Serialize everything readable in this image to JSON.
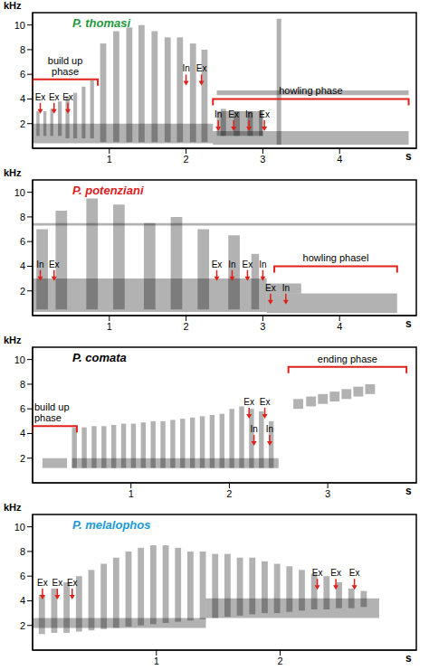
{
  "chart_data": [
    {
      "type": "spectrogram",
      "title": "P. thomasi",
      "color": "#1e9a3c",
      "x_label": "s",
      "y_label": "kHz",
      "xlim": [
        0,
        5
      ],
      "xticks": [
        1,
        2,
        3,
        4
      ],
      "ylim": [
        0,
        11
      ],
      "yticks": [
        2,
        4,
        6,
        8,
        10
      ],
      "sound_energy": [
        [
          0.05,
          0.09,
          1.0,
          3.0
        ],
        [
          0.14,
          0.18,
          1.0,
          3.0
        ],
        [
          0.23,
          0.27,
          1.0,
          3.2
        ],
        [
          0.33,
          0.38,
          1.0,
          3.8
        ],
        [
          0.43,
          0.48,
          0.8,
          4.2
        ],
        [
          0.53,
          0.58,
          0.8,
          4.5
        ],
        [
          0.64,
          0.69,
          0.8,
          5.0
        ],
        [
          0.75,
          0.8,
          0.8,
          5.5
        ],
        [
          0.88,
          0.96,
          0.5,
          8.5
        ],
        [
          1.05,
          1.13,
          0.5,
          9.5
        ],
        [
          1.22,
          1.3,
          0.5,
          9.8
        ],
        [
          1.38,
          1.46,
          0.5,
          10.0
        ],
        [
          1.55,
          1.63,
          0.5,
          9.5
        ],
        [
          1.72,
          1.8,
          0.5,
          9.0
        ],
        [
          1.88,
          1.96,
          0.5,
          9.0
        ],
        [
          2.05,
          2.13,
          0.5,
          8.5
        ],
        [
          2.2,
          2.28,
          0.5,
          8.0
        ],
        [
          0.0,
          2.35,
          0.4,
          2.0
        ],
        [
          2.35,
          4.9,
          0.3,
          1.4
        ],
        [
          2.4,
          3.0,
          1.0,
          3.0
        ],
        [
          2.45,
          2.52,
          1.0,
          3.2
        ],
        [
          2.62,
          2.7,
          1.0,
          3.0
        ],
        [
          2.8,
          2.87,
          1.0,
          3.0
        ],
        [
          2.95,
          3.0,
          1.0,
          3.0
        ],
        [
          3.18,
          3.24,
          0.3,
          10.5
        ],
        [
          2.4,
          4.9,
          4.3,
          4.7
        ]
      ],
      "annotations": [
        {
          "text": "Ex",
          "x": 0.1,
          "y": 3.9
        },
        {
          "text": "Ex",
          "x": 0.28,
          "y": 3.9
        },
        {
          "text": "Ex",
          "x": 0.46,
          "y": 3.9
        },
        {
          "text": "In",
          "x": 2.0,
          "y": 6.2
        },
        {
          "text": "Ex",
          "x": 2.2,
          "y": 6.2
        },
        {
          "text": "In",
          "x": 2.42,
          "y": 2.5
        },
        {
          "text": "Ex",
          "x": 2.62,
          "y": 2.5
        },
        {
          "text": "In",
          "x": 2.82,
          "y": 2.5
        },
        {
          "text": "Ex",
          "x": 3.02,
          "y": 2.5
        }
      ],
      "phases": [
        {
          "text": "build up phase",
          "x": [
            0,
            0.85
          ],
          "y": 5.6
        },
        {
          "text": "howling phase",
          "x": [
            2.35,
            4.9
          ],
          "y": 4.0
        }
      ]
    },
    {
      "type": "spectrogram",
      "title": "P. potenziani",
      "color": "#e0201b",
      "x_label": "s",
      "y_label": "kHz",
      "xlim": [
        0,
        5
      ],
      "xticks": [
        1,
        2,
        3,
        4
      ],
      "ylim": [
        0,
        11
      ],
      "yticks": [
        2,
        4,
        6,
        8,
        10
      ],
      "sound_energy": [
        [
          0.0,
          3.05,
          0.3,
          3.0
        ],
        [
          0.05,
          0.2,
          0.5,
          7.0
        ],
        [
          0.3,
          0.45,
          0.5,
          8.5
        ],
        [
          0.7,
          0.85,
          0.5,
          9.5
        ],
        [
          1.05,
          1.2,
          0.5,
          9.0
        ],
        [
          1.45,
          1.6,
          0.5,
          7.5
        ],
        [
          1.8,
          1.95,
          0.5,
          8.0
        ],
        [
          2.15,
          2.3,
          0.5,
          7.0
        ],
        [
          2.55,
          2.7,
          0.5,
          6.5
        ],
        [
          2.85,
          2.95,
          0.5,
          5.0
        ],
        [
          0.0,
          5.0,
          7.3,
          7.5
        ],
        [
          3.05,
          4.75,
          0.2,
          1.8
        ],
        [
          3.05,
          3.5,
          1.8,
          2.6
        ]
      ],
      "annotations": [
        {
          "text": "In",
          "x": 0.1,
          "y": 3.9
        },
        {
          "text": "Ex",
          "x": 0.28,
          "y": 3.9
        },
        {
          "text": "Ex",
          "x": 2.4,
          "y": 3.9
        },
        {
          "text": "In",
          "x": 2.6,
          "y": 3.9
        },
        {
          "text": "Ex",
          "x": 2.8,
          "y": 3.9
        },
        {
          "text": "In",
          "x": 3.0,
          "y": 3.9
        },
        {
          "text": "Ex",
          "x": 3.1,
          "y": 2.0
        },
        {
          "text": "In",
          "x": 3.3,
          "y": 2.0
        }
      ],
      "phases": [
        {
          "text": "howling phasel",
          "x": [
            3.15,
            4.75
          ],
          "y": 4.0
        }
      ]
    },
    {
      "type": "spectrogram",
      "title": "P. comata",
      "color": "#000000",
      "x_label": "s",
      "y_label": "kHz",
      "xlim": [
        0,
        3.9
      ],
      "xticks": [
        1,
        2,
        3
      ],
      "ylim": [
        0,
        11
      ],
      "yticks": [
        2,
        4,
        6,
        8,
        10
      ],
      "sound_energy": [
        [
          0.1,
          0.35,
          1.2,
          2.0
        ],
        [
          0.4,
          0.45,
          1.2,
          4.5
        ],
        [
          0.5,
          0.55,
          1.2,
          4.5
        ],
        [
          0.6,
          0.65,
          1.2,
          4.6
        ],
        [
          0.7,
          0.75,
          1.2,
          4.6
        ],
        [
          0.8,
          0.85,
          1.2,
          4.7
        ],
        [
          0.9,
          0.95,
          1.2,
          4.8
        ],
        [
          1.0,
          1.05,
          1.2,
          4.8
        ],
        [
          1.1,
          1.15,
          1.2,
          4.9
        ],
        [
          1.2,
          1.25,
          1.2,
          5.0
        ],
        [
          1.3,
          1.35,
          1.2,
          5.0
        ],
        [
          1.4,
          1.45,
          1.2,
          5.1
        ],
        [
          1.5,
          1.55,
          1.2,
          5.2
        ],
        [
          1.6,
          1.65,
          1.2,
          5.3
        ],
        [
          1.7,
          1.75,
          1.2,
          5.4
        ],
        [
          1.8,
          1.85,
          1.2,
          5.5
        ],
        [
          1.9,
          1.95,
          1.2,
          5.6
        ],
        [
          2.0,
          2.05,
          1.2,
          6.0
        ],
        [
          2.1,
          2.15,
          1.2,
          6.2
        ],
        [
          2.2,
          2.25,
          1.2,
          6.0
        ],
        [
          2.3,
          2.35,
          1.2,
          5.8
        ],
        [
          2.4,
          2.45,
          1.2,
          5.0
        ],
        [
          0.4,
          2.5,
          1.2,
          2.0
        ],
        [
          2.65,
          2.75,
          6.0,
          6.8
        ],
        [
          2.78,
          2.88,
          6.2,
          7.0
        ],
        [
          2.9,
          3.0,
          6.4,
          7.2
        ],
        [
          3.02,
          3.12,
          6.6,
          7.4
        ],
        [
          3.14,
          3.24,
          6.8,
          7.6
        ],
        [
          3.26,
          3.36,
          7.0,
          7.8
        ],
        [
          3.38,
          3.48,
          7.2,
          8.0
        ]
      ],
      "annotations": [
        {
          "text": "Ex",
          "x": 2.2,
          "y": 6.3
        },
        {
          "text": "Ex",
          "x": 2.36,
          "y": 6.3
        },
        {
          "text": "In",
          "x": 2.25,
          "y": 4.1
        },
        {
          "text": "In",
          "x": 2.41,
          "y": 4.1
        }
      ],
      "phases": [
        {
          "text": "build up phase",
          "x": [
            0,
            0.45
          ],
          "y": 4.6
        },
        {
          "text": "ending phase",
          "x": [
            2.6,
            3.8
          ],
          "y": 9.4
        }
      ]
    },
    {
      "type": "spectrogram",
      "title": "P. melalophos",
      "color": "#1b9ad6",
      "x_label": "s",
      "y_label": "kHz",
      "xlim": [
        0,
        3.1
      ],
      "xticks": [
        1,
        2
      ],
      "ylim": [
        0,
        11
      ],
      "yticks": [
        2,
        4,
        6,
        8,
        10
      ],
      "sound_energy": [
        [
          0.05,
          0.1,
          1.3,
          4.5
        ],
        [
          0.15,
          0.2,
          1.4,
          5.0
        ],
        [
          0.25,
          0.3,
          1.4,
          5.5
        ],
        [
          0.35,
          0.4,
          1.5,
          6.0
        ],
        [
          0.45,
          0.5,
          1.6,
          6.5
        ],
        [
          0.55,
          0.6,
          1.7,
          7.0
        ],
        [
          0.65,
          0.7,
          1.8,
          7.5
        ],
        [
          0.75,
          0.8,
          1.9,
          8.0
        ],
        [
          0.85,
          0.9,
          2.0,
          8.3
        ],
        [
          0.95,
          1.0,
          2.1,
          8.5
        ],
        [
          1.05,
          1.1,
          2.2,
          8.5
        ],
        [
          1.15,
          1.2,
          2.3,
          8.3
        ],
        [
          1.25,
          1.3,
          2.4,
          8.0
        ],
        [
          1.35,
          1.4,
          2.5,
          8.0
        ],
        [
          1.45,
          1.5,
          2.6,
          7.8
        ],
        [
          1.55,
          1.6,
          2.7,
          7.8
        ],
        [
          1.65,
          1.7,
          2.8,
          7.5
        ],
        [
          1.75,
          1.8,
          2.9,
          7.5
        ],
        [
          1.85,
          1.9,
          3.0,
          7.2
        ],
        [
          1.95,
          2.0,
          3.0,
          7.0
        ],
        [
          2.05,
          2.1,
          3.1,
          6.8
        ],
        [
          2.15,
          2.2,
          3.2,
          6.5
        ],
        [
          2.25,
          2.3,
          3.3,
          6.2
        ],
        [
          2.35,
          2.4,
          3.3,
          6.0
        ],
        [
          2.45,
          2.5,
          3.4,
          5.5
        ],
        [
          2.55,
          2.6,
          3.4,
          5.0
        ],
        [
          2.65,
          2.7,
          3.5,
          4.8
        ],
        [
          0.0,
          1.4,
          1.8,
          2.6
        ],
        [
          1.4,
          2.8,
          2.6,
          4.2
        ]
      ],
      "annotations": [
        {
          "text": "Ex",
          "x": 0.08,
          "y": 5.2
        },
        {
          "text": "Ex",
          "x": 0.2,
          "y": 5.2
        },
        {
          "text": "Ex",
          "x": 0.32,
          "y": 5.2
        },
        {
          "text": "Ex",
          "x": 2.3,
          "y": 6.0
        },
        {
          "text": "Ex",
          "x": 2.45,
          "y": 6.0
        },
        {
          "text": "Ex",
          "x": 2.6,
          "y": 6.0
        }
      ],
      "phases": []
    }
  ]
}
